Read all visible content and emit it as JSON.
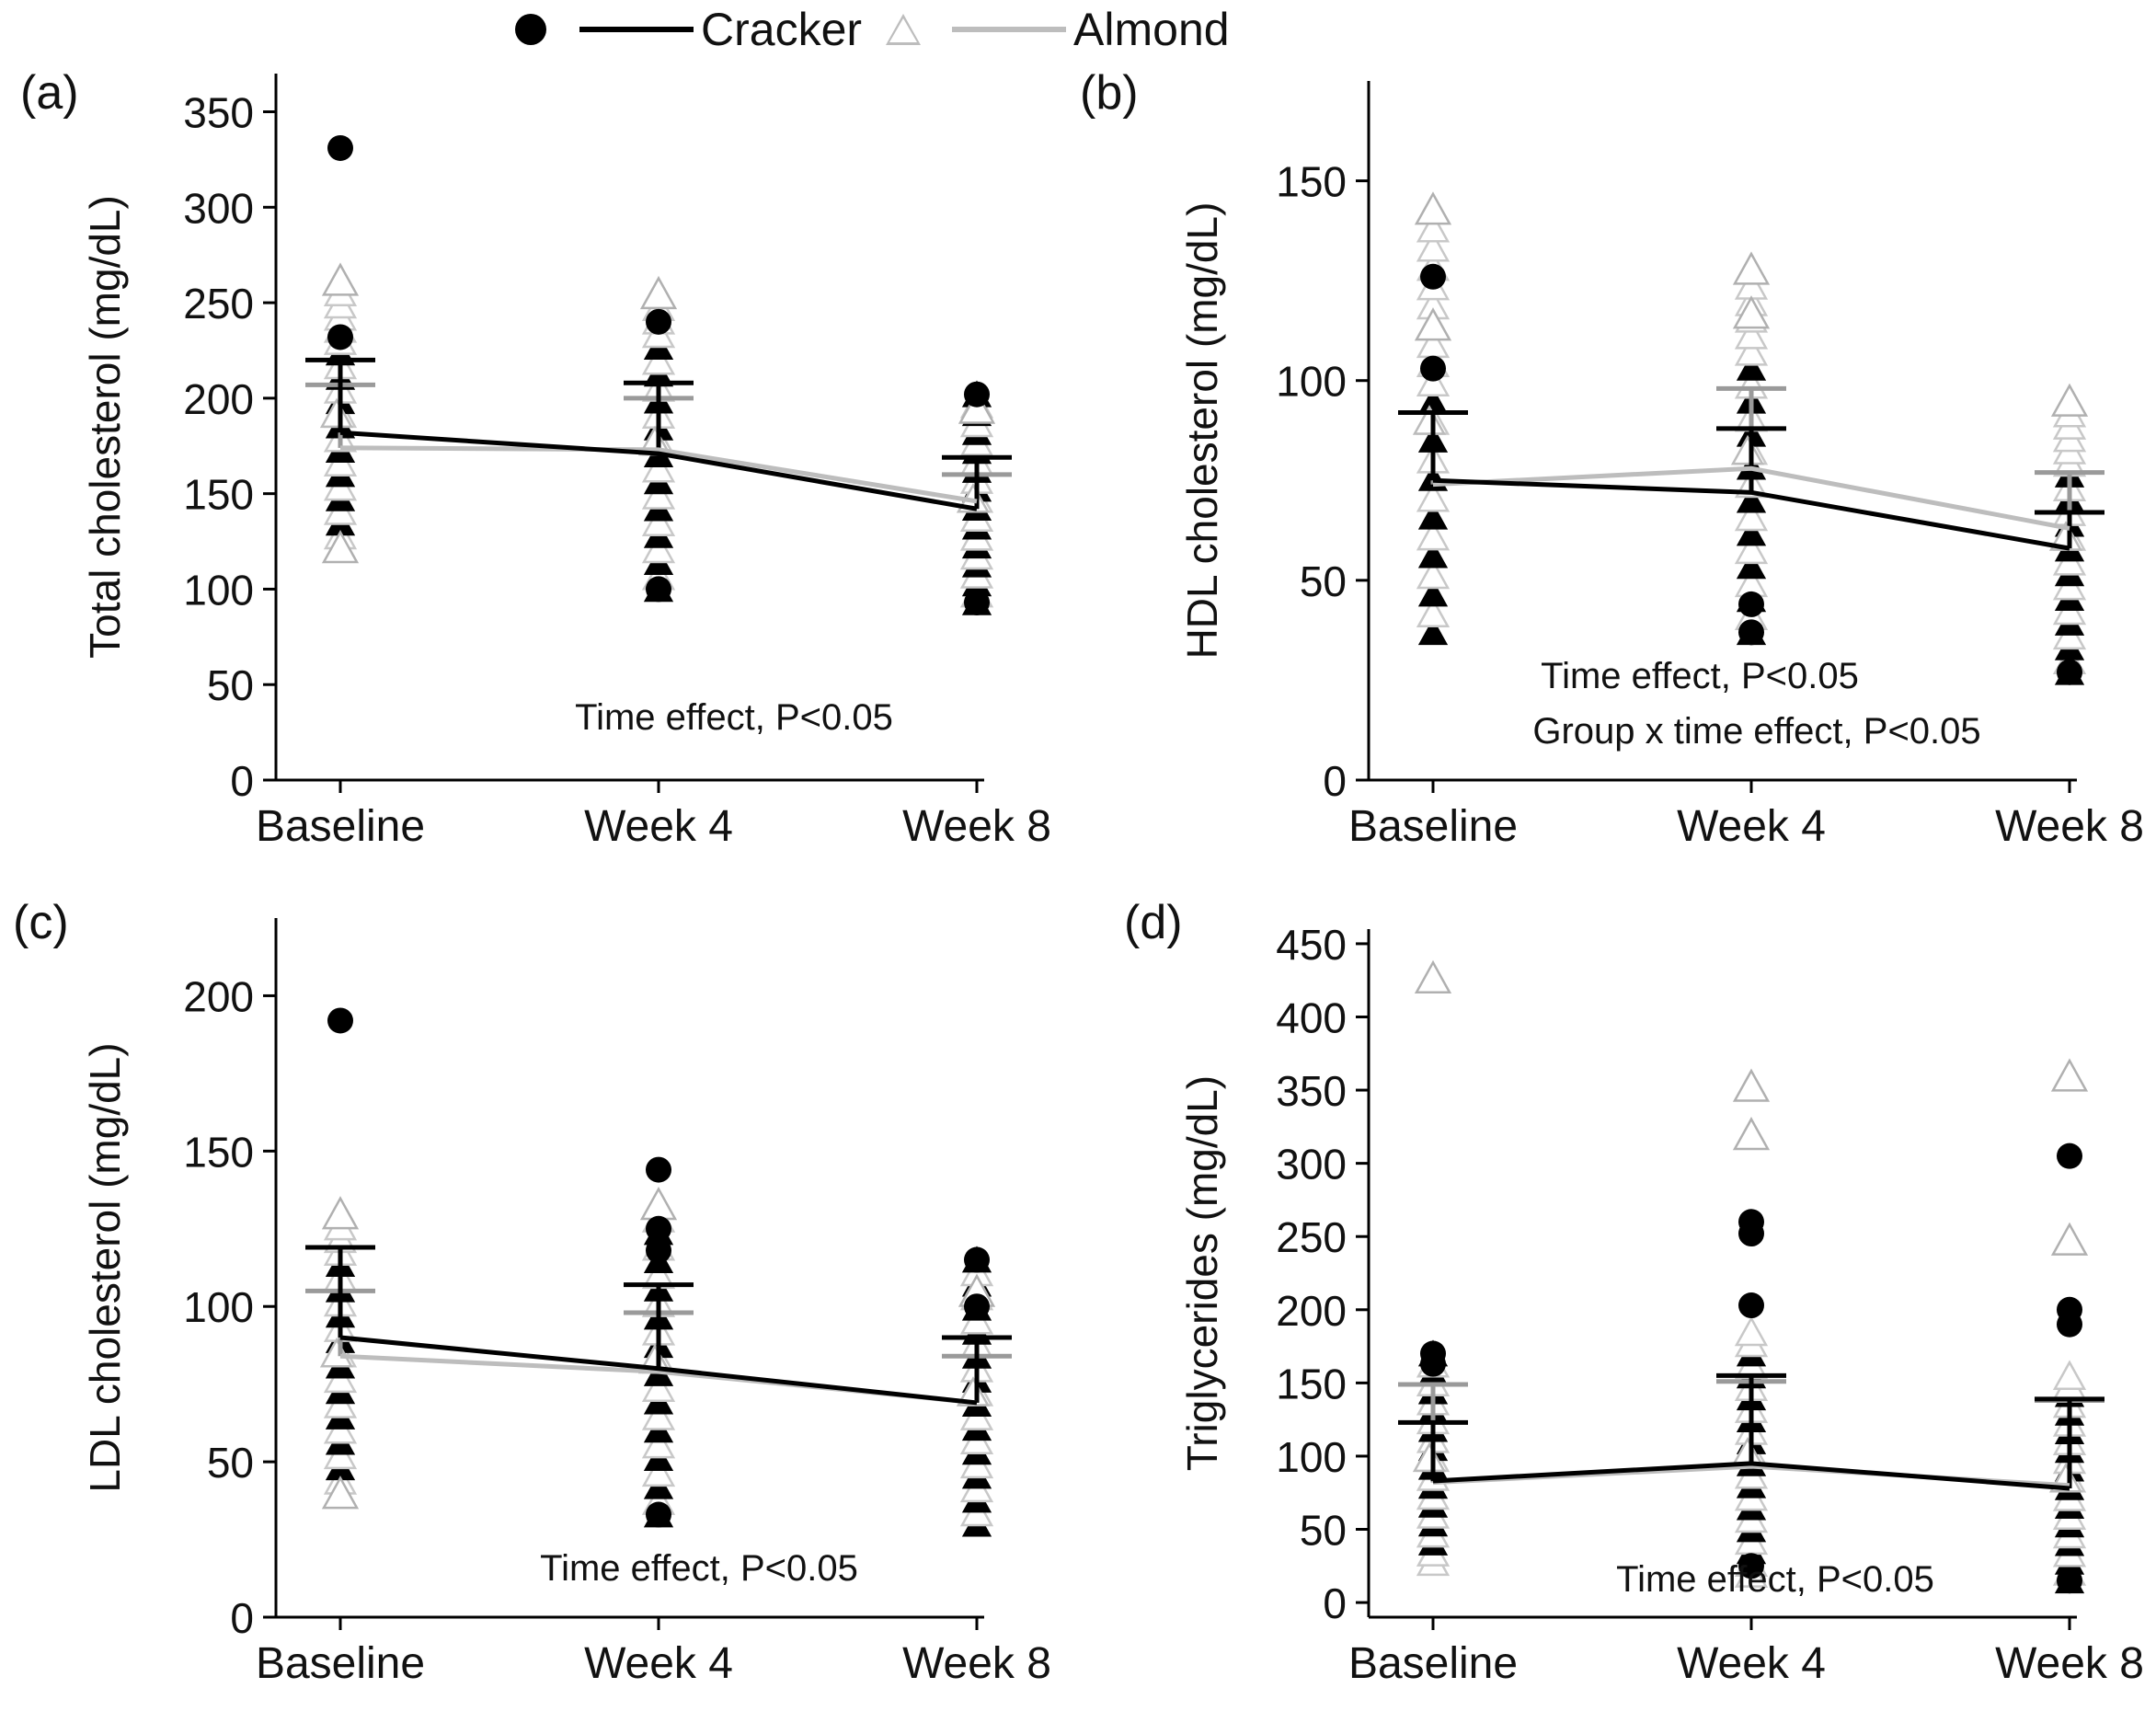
{
  "legend": {
    "cracker_label": "Cracker",
    "almond_label": "Almond"
  },
  "colors": {
    "cracker": "#000000",
    "almond": "#bdbdbd",
    "cracker_error": "#000000",
    "almond_error": "#9a9a9a"
  },
  "chart_data": [
    {
      "type": "scatter",
      "panel_label": "(a)",
      "ylabel": "Total cholesterol (mg/dL)",
      "categories": [
        "Baseline",
        "Week 4",
        "Week 8"
      ],
      "ylim": [
        0,
        370
      ],
      "yticks": [
        0,
        50,
        100,
        150,
        200,
        250,
        300,
        350
      ],
      "annotations": [
        "Time effect, P<0.05"
      ],
      "series": [
        {
          "name": "Cracker",
          "marker": "circle",
          "means": [
            182,
            171,
            142
          ],
          "upper_sd": [
            220,
            208,
            169
          ],
          "outlier_points": [
            [
              0,
              331
            ],
            [
              0,
              232
            ],
            [
              1,
              240
            ],
            [
              1,
              100
            ],
            [
              2,
              202
            ],
            [
              2,
              93
            ]
          ],
          "strip_range": [
            [
              130,
              225
            ],
            [
              100,
              240
            ],
            [
              93,
              202
            ]
          ]
        },
        {
          "name": "Almond",
          "marker": "triangle",
          "means": [
            174,
            173,
            146
          ],
          "upper_sd": [
            207,
            200,
            160
          ],
          "outlier_points": [
            [
              0,
              262
            ],
            [
              0,
              122
            ],
            [
              1,
              255
            ],
            [
              2,
              195
            ]
          ],
          "strip_range": [
            [
              122,
              262
            ],
            [
              110,
              255
            ],
            [
              100,
              195
            ]
          ]
        }
      ]
    },
    {
      "type": "scatter",
      "panel_label": "(b)",
      "ylabel": "HDL cholesterol (mg/dL)",
      "categories": [
        "Baseline",
        "Week 4",
        "Week 8"
      ],
      "ylim": [
        0,
        175
      ],
      "yticks": [
        0,
        50,
        100,
        150
      ],
      "annotations": [
        "Time effect, P<0.05",
        "Group x time effect, P<0.05"
      ],
      "series": [
        {
          "name": "Cracker",
          "marker": "circle",
          "means": [
            75,
            72,
            58
          ],
          "upper_sd": [
            92,
            88,
            67
          ],
          "outlier_points": [
            [
              0,
              126
            ],
            [
              0,
              103
            ],
            [
              1,
              44
            ],
            [
              1,
              37
            ],
            [
              2,
              27
            ]
          ],
          "strip_range": [
            [
              37,
              100
            ],
            [
              37,
              110
            ],
            [
              27,
              80
            ]
          ]
        },
        {
          "name": "Almond",
          "marker": "triangle",
          "means": [
            74,
            78,
            63
          ],
          "upper_sd": [
            92,
            98,
            77
          ],
          "outlier_points": [
            [
              0,
              143
            ],
            [
              0,
              114
            ],
            [
              1,
              128
            ],
            [
              1,
              117
            ],
            [
              2,
              95
            ]
          ],
          "strip_range": [
            [
              38,
              143
            ],
            [
              45,
              128
            ],
            [
              38,
              95
            ]
          ]
        }
      ]
    },
    {
      "type": "scatter",
      "panel_label": "(c)",
      "ylabel": "LDL cholesterol (mg/dL)",
      "categories": [
        "Baseline",
        "Week 4",
        "Week 8"
      ],
      "ylim": [
        0,
        225
      ],
      "yticks": [
        0,
        50,
        100,
        150,
        200
      ],
      "annotations": [
        "Time effect, P<0.05"
      ],
      "series": [
        {
          "name": "Cracker",
          "marker": "circle",
          "means": [
            90,
            80,
            69
          ],
          "upper_sd": [
            119,
            107,
            90
          ],
          "outlier_points": [
            [
              0,
              192
            ],
            [
              1,
              144
            ],
            [
              1,
              125
            ],
            [
              1,
              118
            ],
            [
              1,
              33
            ],
            [
              2,
              115
            ],
            [
              2,
              100
            ]
          ],
          "strip_range": [
            [
              42,
              120
            ],
            [
              33,
              125
            ],
            [
              30,
              115
            ]
          ]
        },
        {
          "name": "Almond",
          "marker": "triangle",
          "means": [
            84,
            79,
            69
          ],
          "upper_sd": [
            105,
            98,
            84
          ],
          "outlier_points": [
            [
              0,
              130
            ],
            [
              0,
              40
            ],
            [
              1,
              133
            ],
            [
              2,
              105
            ]
          ],
          "strip_range": [
            [
              40,
              130
            ],
            [
              40,
              133
            ],
            [
              30,
              105
            ]
          ]
        }
      ]
    },
    {
      "type": "scatter",
      "panel_label": "(d)",
      "ylabel": "Triglycerides (mg/dL)",
      "categories": [
        "Baseline",
        "Week 4",
        "Week 8"
      ],
      "ylim": [
        -10,
        460
      ],
      "yticks": [
        0,
        50,
        100,
        150,
        200,
        250,
        300,
        350,
        400,
        450
      ],
      "annotations": [
        "Time effect, P<0.05"
      ],
      "series": [
        {
          "name": "Cracker",
          "marker": "circle",
          "means": [
            83,
            95,
            78
          ],
          "upper_sd": [
            123,
            155,
            139
          ],
          "outlier_points": [
            [
              0,
              170
            ],
            [
              0,
              163
            ],
            [
              1,
              260
            ],
            [
              1,
              252
            ],
            [
              1,
              203
            ],
            [
              1,
              25
            ],
            [
              2,
              305
            ],
            [
              2,
              200
            ],
            [
              2,
              190
            ],
            [
              2,
              15
            ]
          ],
          "strip_range": [
            [
              30,
              170
            ],
            [
              25,
              180
            ],
            [
              15,
              150
            ]
          ]
        },
        {
          "name": "Almond",
          "marker": "triangle",
          "means": [
            82,
            93,
            80
          ],
          "upper_sd": [
            149,
            151,
            138
          ],
          "outlier_points": [
            [
              0,
              427
            ],
            [
              1,
              353
            ],
            [
              1,
              320
            ],
            [
              2,
              360
            ],
            [
              2,
              248
            ]
          ],
          "strip_range": [
            [
              28,
              160
            ],
            [
              20,
              185
            ],
            [
              20,
              155
            ]
          ]
        }
      ]
    }
  ]
}
